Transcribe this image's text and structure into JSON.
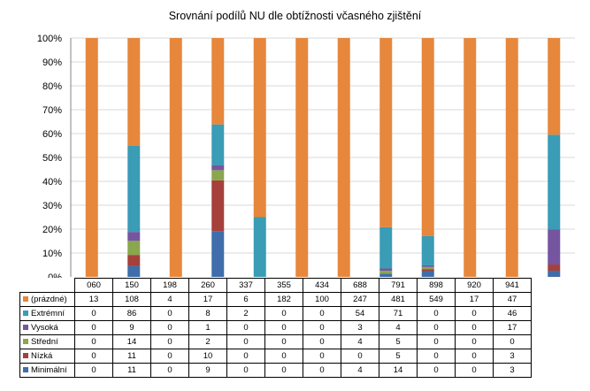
{
  "chart_data": {
    "type": "bar",
    "stacked": "percent",
    "title": "Srovnání podílů NU  dle obtížnosti včasného zjištění",
    "categories": [
      "060",
      "150",
      "198",
      "260",
      "337",
      "355",
      "434",
      "688",
      "791",
      "898",
      "920",
      "941"
    ],
    "y_ticks": [
      "0%",
      "10%",
      "20%",
      "30%",
      "40%",
      "50%",
      "60%",
      "70%",
      "80%",
      "90%",
      "100%"
    ],
    "ylim": [
      0,
      100
    ],
    "grid": true,
    "legend_placement": "data-table",
    "series": [
      {
        "name": "Minimální",
        "color": "#3f6eaa",
        "values": [
          0,
          11,
          0,
          9,
          0,
          0,
          0,
          4,
          14,
          0,
          0,
          3
        ]
      },
      {
        "name": "Nízká",
        "color": "#a6403b",
        "values": [
          0,
          11,
          0,
          10,
          0,
          0,
          0,
          0,
          5,
          0,
          0,
          3
        ]
      },
      {
        "name": "Střední",
        "color": "#89a74c",
        "values": [
          0,
          14,
          0,
          2,
          0,
          0,
          0,
          4,
          5,
          0,
          0,
          0
        ]
      },
      {
        "name": "Vysoká",
        "color": "#7655a0",
        "values": [
          0,
          9,
          0,
          1,
          0,
          0,
          0,
          3,
          4,
          0,
          0,
          17
        ]
      },
      {
        "name": "Extrémní",
        "color": "#3a9cb5",
        "values": [
          0,
          86,
          0,
          8,
          2,
          0,
          0,
          54,
          71,
          0,
          0,
          46
        ]
      },
      {
        "name": "(prázdné)",
        "color": "#e6873c",
        "values": [
          13,
          108,
          4,
          17,
          6,
          182,
          100,
          247,
          481,
          549,
          17,
          47
        ]
      }
    ],
    "table_row_order": [
      "(prázdné)",
      "Extrémní",
      "Vysoká",
      "Střední",
      "Nízká",
      "Minimální"
    ]
  }
}
